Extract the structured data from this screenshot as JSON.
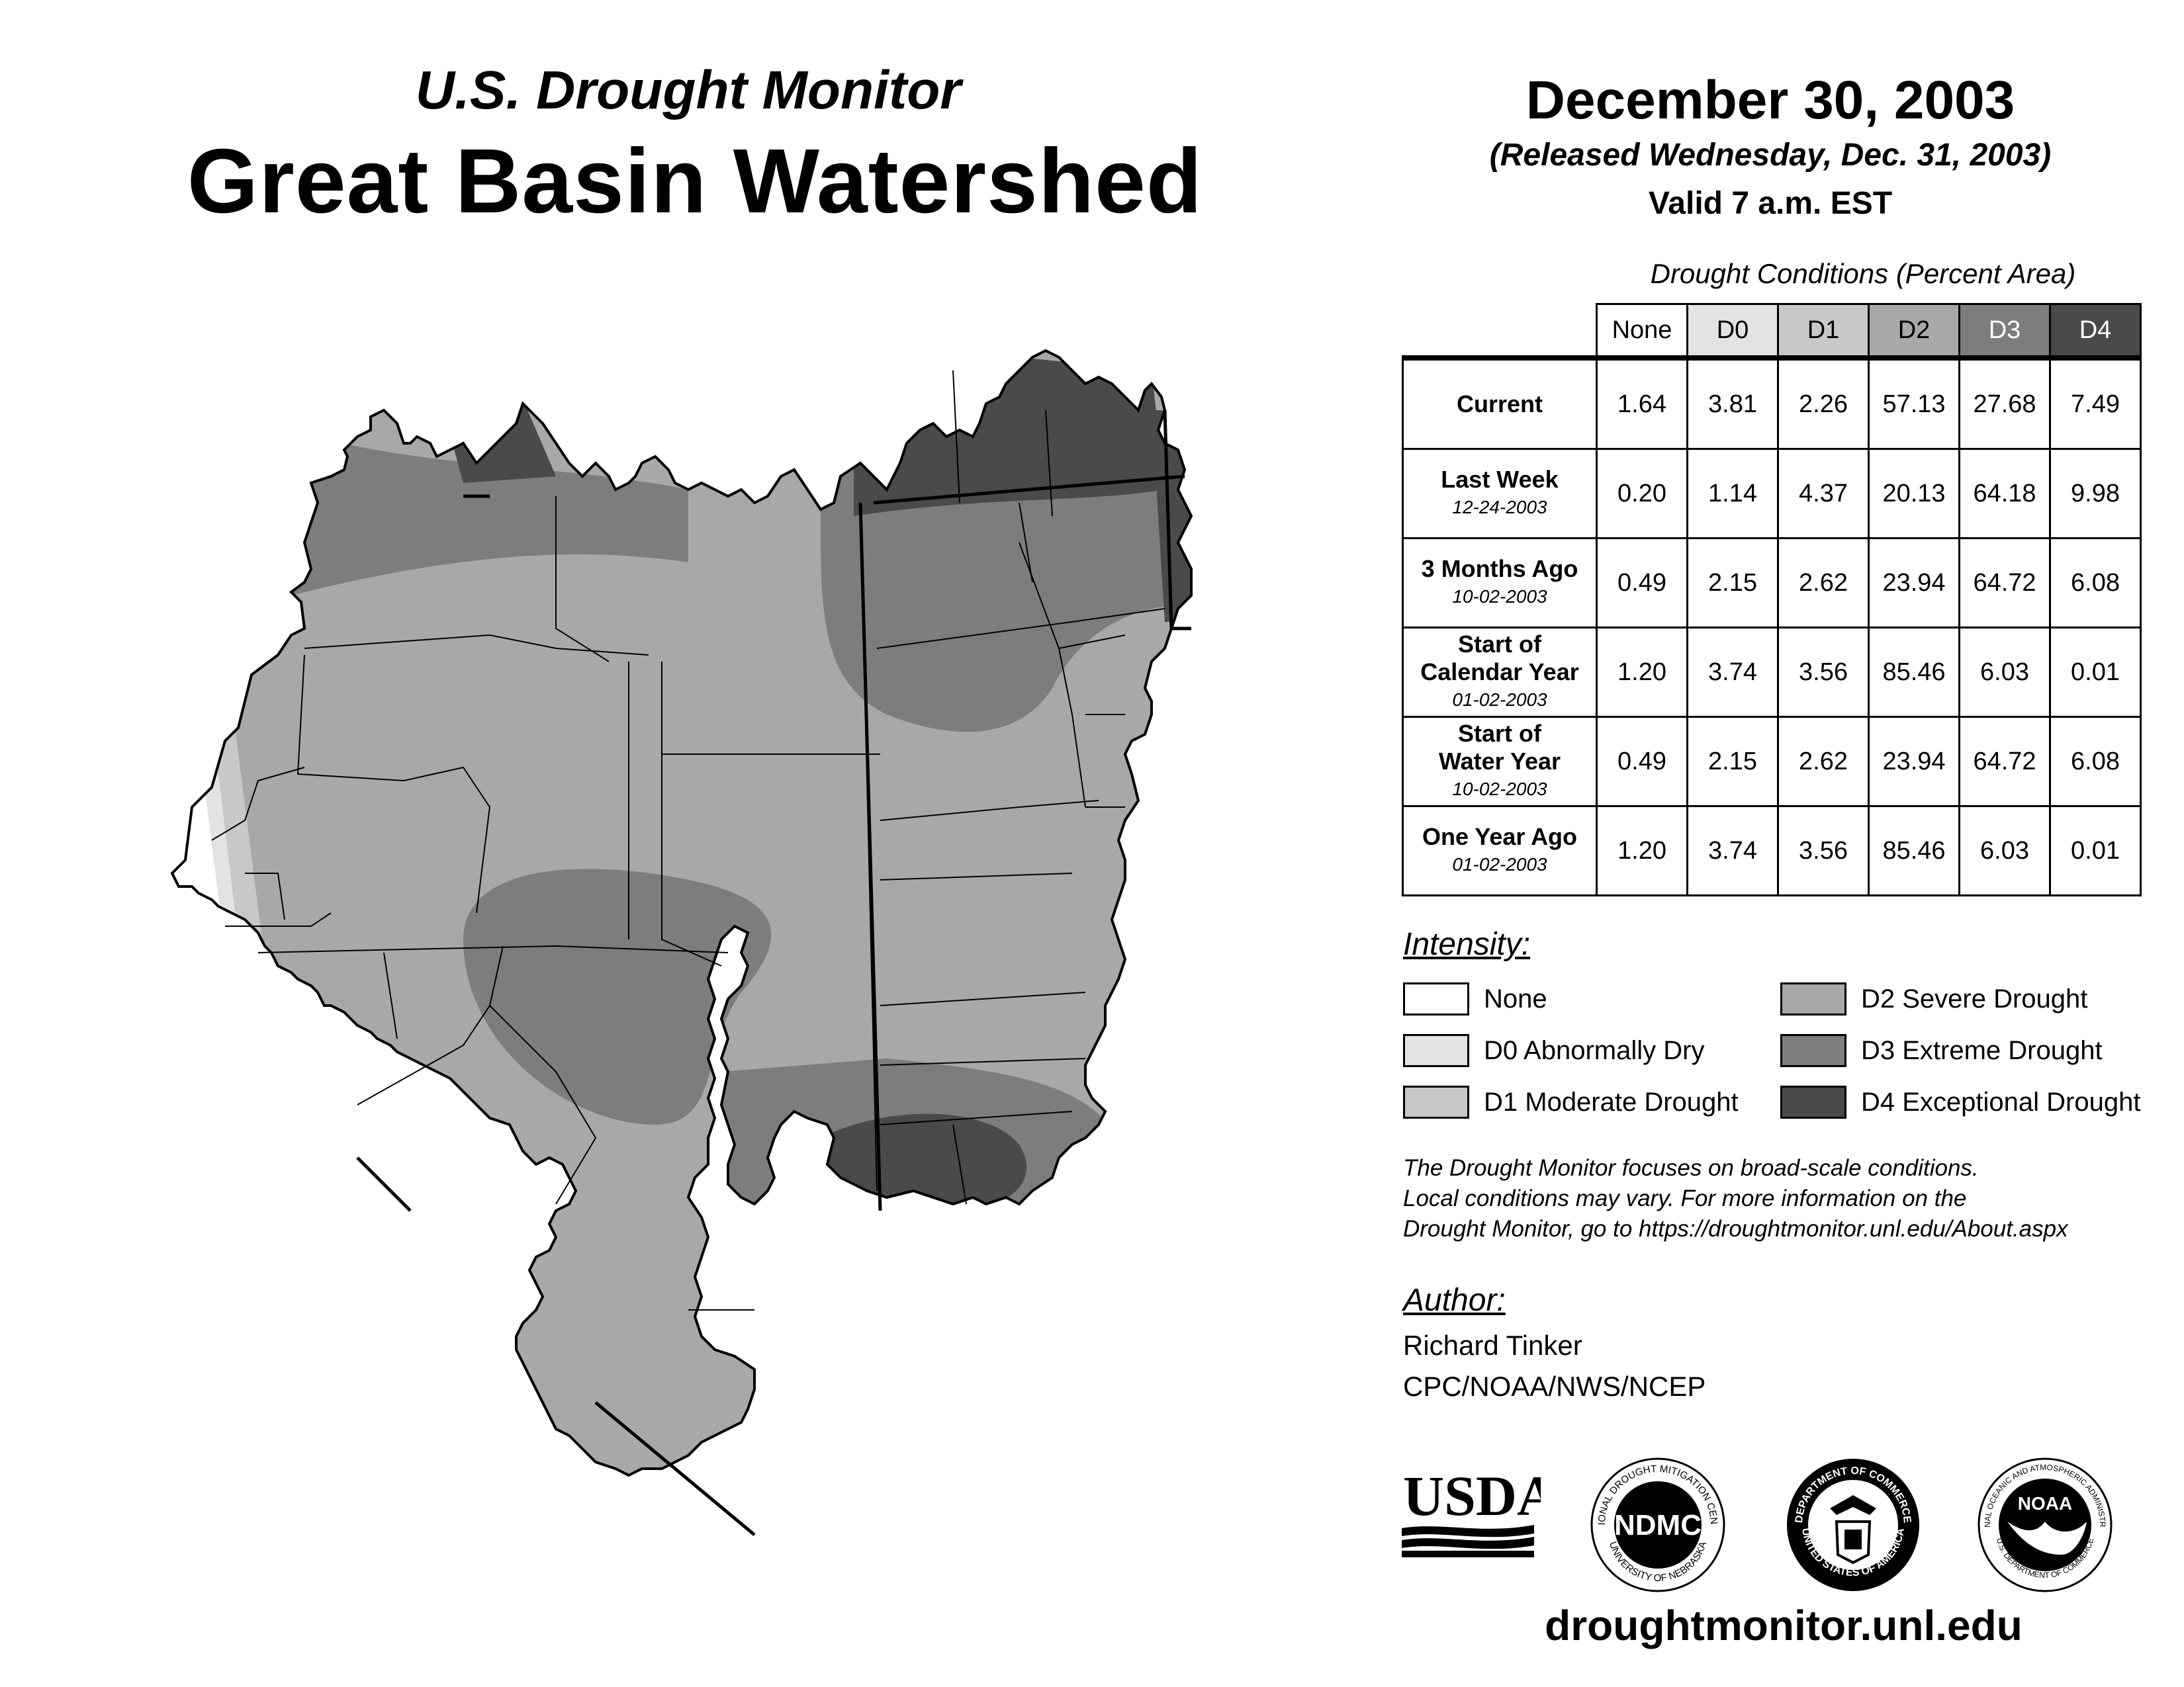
{
  "header": {
    "subtitle": "U.S. Drought Monitor",
    "title": "Great Basin Watershed",
    "date": "December 30, 2003",
    "released": "(Released Wednesday, Dec. 31, 2003)",
    "valid": "Valid 7 a.m. EST"
  },
  "table": {
    "caption": "Drought Conditions (Percent Area)",
    "columns": [
      "None",
      "D0",
      "D1",
      "D2",
      "D3",
      "D4"
    ],
    "rows": [
      {
        "label": "Current",
        "date": "",
        "values": [
          "1.64",
          "3.81",
          "2.26",
          "57.13",
          "27.68",
          "7.49"
        ]
      },
      {
        "label": "Last Week",
        "date": "12-24-2003",
        "values": [
          "0.20",
          "1.14",
          "4.37",
          "20.13",
          "64.18",
          "9.98"
        ]
      },
      {
        "label": "3 Months Ago",
        "date": "10-02-2003",
        "values": [
          "0.49",
          "2.15",
          "2.62",
          "23.94",
          "64.72",
          "6.08"
        ]
      },
      {
        "label_line1": "Start of",
        "label_line2": "Calendar Year",
        "date": "01-02-2003",
        "values": [
          "1.20",
          "3.74",
          "3.56",
          "85.46",
          "6.03",
          "0.01"
        ]
      },
      {
        "label_line1": "Start of",
        "label_line2": "Water Year",
        "date": "10-02-2003",
        "values": [
          "0.49",
          "2.15",
          "2.62",
          "23.94",
          "64.72",
          "6.08"
        ]
      },
      {
        "label": "One Year Ago",
        "date": "01-02-2003",
        "values": [
          "1.20",
          "3.74",
          "3.56",
          "85.46",
          "6.03",
          "0.01"
        ]
      }
    ]
  },
  "legend": {
    "heading": "Intensity:",
    "items": [
      {
        "label": "None",
        "color": "#ffffff"
      },
      {
        "label": "D0 Abnormally Dry",
        "color": "#e3e3e3"
      },
      {
        "label": "D1 Moderate Drought",
        "color": "#c8c8c8"
      },
      {
        "label": "D2 Severe Drought",
        "color": "#a8a8a8"
      },
      {
        "label": "D3 Extreme Drought",
        "color": "#7d7d7d"
      },
      {
        "label": "D4 Exceptional Drought",
        "color": "#4a4a4a"
      }
    ]
  },
  "note": {
    "line1": "The Drought Monitor focuses on broad-scale conditions.",
    "line2": "Local conditions may vary. For more information on the",
    "line3": "Drought Monitor, go to https://droughtmonitor.unl.edu/About.aspx"
  },
  "author": {
    "heading": "Author:",
    "name": "Richard Tinker",
    "org": "CPC/NOAA/NWS/NCEP"
  },
  "logos": {
    "usda": "USDA",
    "ndmc": "NDMC",
    "ndmc_ring_top": "NATIONAL DROUGHT MITIGATION CENTER",
    "ndmc_ring_bottom": "UNIVERSITY OF NEBRASKA",
    "doc_ring_top": "DEPARTMENT OF COMMERCE",
    "doc_ring_bottom": "UNITED STATES OF AMERICA",
    "noaa": "NOAA",
    "noaa_ring_top": "NATIONAL OCEANIC AND ATMOSPHERIC ADMINISTRATION",
    "noaa_ring_bottom": "U.S. DEPARTMENT OF COMMERCE"
  },
  "website": "droughtmonitor.unl.edu",
  "colors": {
    "none": "#ffffff",
    "d0": "#e3e3e3",
    "d1": "#c8c8c8",
    "d2": "#a8a8a8",
    "d3": "#7d7d7d",
    "d4": "#4a4a4a"
  }
}
